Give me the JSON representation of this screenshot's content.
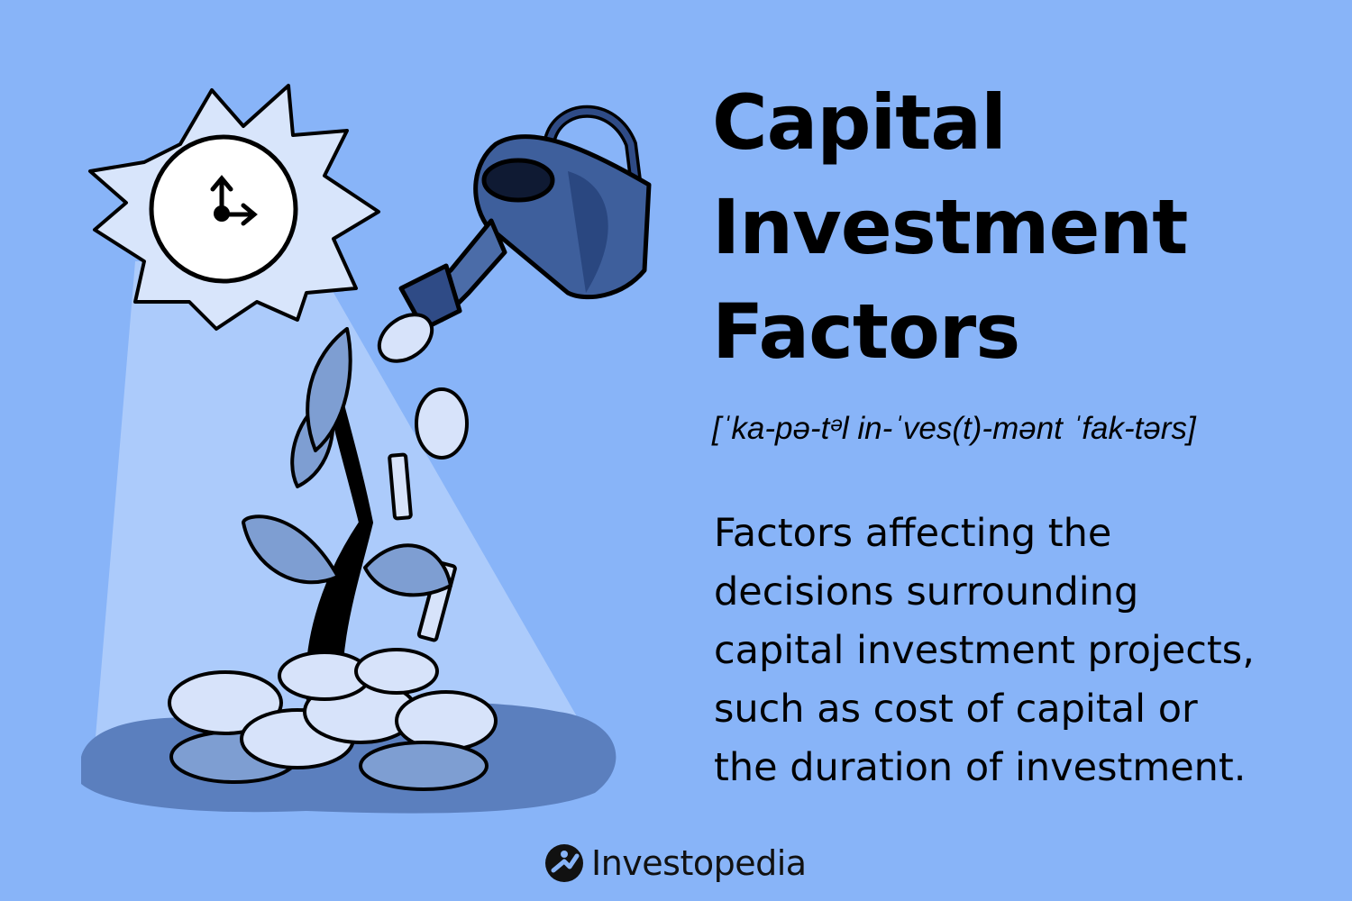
{
  "title_lines": [
    "Capital",
    "Investment",
    "Factors"
  ],
  "pronunciation": "[ˈka-pə-tᵊl in-ˈves(t)-mənt ˈfak-tərs]",
  "definition_lines": [
    "Factors affecting the",
    "decisions surrounding",
    "capital investment projects,",
    "such as cost of capital or",
    "the duration of investment."
  ],
  "brand": {
    "name": "Investopedia",
    "icon": "investopedia-logo-icon"
  },
  "colors": {
    "background": "#88b4f8",
    "light_beam": "#b3cffb",
    "coin_fill": "#7e9ed2",
    "shadow": "#5b7fbe",
    "can": "#3e5f9c",
    "ink": "#000000"
  }
}
